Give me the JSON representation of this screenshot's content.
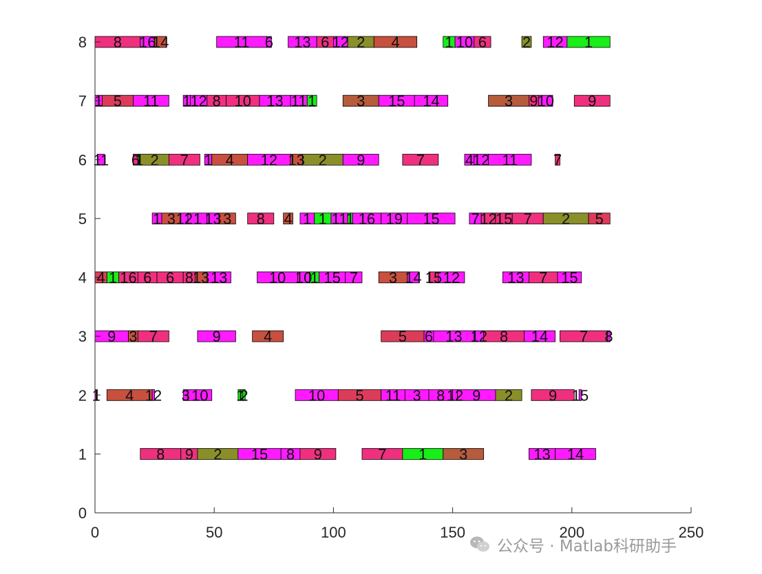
{
  "watermark": {
    "text": "公众号 · Matlab科研助手",
    "icon": "wechat-icon"
  },
  "chart_data": {
    "type": "gantt",
    "xlim": [
      0,
      250
    ],
    "ylim": [
      0,
      8
    ],
    "xticks": [
      0,
      50,
      100,
      150,
      200,
      250
    ],
    "yticks": [
      0,
      1,
      2,
      3,
      4,
      5,
      6,
      7,
      8
    ],
    "colors": {
      "magenta": "#ff1aff",
      "pink": "#f0307f",
      "red": "#dc3c5a",
      "rust": "#c8503f",
      "brown": "#b75b3d",
      "olive": "#8a8f2a",
      "green": "#18ee18"
    },
    "bars": [
      {
        "y": 1,
        "start": 19,
        "end": 36,
        "color": "pink",
        "label": "8"
      },
      {
        "y": 1,
        "start": 36,
        "end": 43,
        "color": "pink",
        "label": "9"
      },
      {
        "y": 1,
        "start": 43,
        "end": 60,
        "color": "olive",
        "label": "2"
      },
      {
        "y": 1,
        "start": 60,
        "end": 78,
        "color": "magenta",
        "label": "15"
      },
      {
        "y": 1,
        "start": 78,
        "end": 86,
        "color": "magenta",
        "label": "8"
      },
      {
        "y": 1,
        "start": 86,
        "end": 101,
        "color": "pink",
        "label": "9"
      },
      {
        "y": 1,
        "start": 112,
        "end": 129,
        "color": "pink",
        "label": "7"
      },
      {
        "y": 1,
        "start": 129,
        "end": 146,
        "color": "green",
        "label": "1"
      },
      {
        "y": 1,
        "start": 146,
        "end": 163,
        "color": "brown",
        "label": "3"
      },
      {
        "y": 1,
        "start": 182,
        "end": 193,
        "color": "magenta",
        "label": "13"
      },
      {
        "y": 1,
        "start": 193,
        "end": 210,
        "color": "magenta",
        "label": "14"
      },
      {
        "y": 2,
        "start": 0,
        "end": 1,
        "color": "magenta",
        "label": "1"
      },
      {
        "y": 2,
        "start": 5,
        "end": 24,
        "color": "rust",
        "label": "4"
      },
      {
        "y": 2,
        "start": 24,
        "end": 25,
        "color": "magenta",
        "label": "12"
      },
      {
        "y": 2,
        "start": 37,
        "end": 39,
        "color": "magenta",
        "label": "3"
      },
      {
        "y": 2,
        "start": 39,
        "end": 49,
        "color": "magenta",
        "label": "10"
      },
      {
        "y": 2,
        "start": 60,
        "end": 62,
        "color": "green",
        "label": "1"
      },
      {
        "y": 2,
        "start": 62,
        "end": 63,
        "color": "green",
        "label": "2"
      },
      {
        "y": 2,
        "start": 84,
        "end": 102,
        "color": "magenta",
        "label": "10"
      },
      {
        "y": 2,
        "start": 102,
        "end": 120,
        "color": "red",
        "label": "5"
      },
      {
        "y": 2,
        "start": 120,
        "end": 130,
        "color": "magenta",
        "label": "11"
      },
      {
        "y": 2,
        "start": 130,
        "end": 140,
        "color": "magenta",
        "label": "3"
      },
      {
        "y": 2,
        "start": 140,
        "end": 150,
        "color": "magenta",
        "label": "8"
      },
      {
        "y": 2,
        "start": 150,
        "end": 152,
        "color": "magenta",
        "label": "12"
      },
      {
        "y": 2,
        "start": 152,
        "end": 168,
        "color": "magenta",
        "label": "9"
      },
      {
        "y": 2,
        "start": 168,
        "end": 179,
        "color": "olive",
        "label": "2"
      },
      {
        "y": 2,
        "start": 183,
        "end": 201,
        "color": "pink",
        "label": "9"
      },
      {
        "y": 2,
        "start": 203,
        "end": 204,
        "color": "magenta",
        "label": "15"
      },
      {
        "y": 3,
        "start": 0,
        "end": 14,
        "color": "magenta",
        "label": "9"
      },
      {
        "y": 3,
        "start": 14,
        "end": 18,
        "color": "rust",
        "label": "3"
      },
      {
        "y": 3,
        "start": 18,
        "end": 31,
        "color": "pink",
        "label": "7"
      },
      {
        "y": 3,
        "start": 43,
        "end": 59,
        "color": "magenta",
        "label": "9"
      },
      {
        "y": 3,
        "start": 66,
        "end": 79,
        "color": "rust",
        "label": "4"
      },
      {
        "y": 3,
        "start": 120,
        "end": 138,
        "color": "red",
        "label": "5"
      },
      {
        "y": 3,
        "start": 138,
        "end": 142,
        "color": "magenta",
        "label": "6"
      },
      {
        "y": 3,
        "start": 142,
        "end": 159,
        "color": "magenta",
        "label": "13"
      },
      {
        "y": 3,
        "start": 159,
        "end": 163,
        "color": "magenta",
        "label": "12"
      },
      {
        "y": 3,
        "start": 163,
        "end": 180,
        "color": "pink",
        "label": "8"
      },
      {
        "y": 3,
        "start": 180,
        "end": 193,
        "color": "magenta",
        "label": "14"
      },
      {
        "y": 3,
        "start": 195,
        "end": 215,
        "color": "pink",
        "label": "7"
      },
      {
        "y": 3,
        "start": 215,
        "end": 216,
        "color": "magenta",
        "label": "8"
      },
      {
        "y": 4,
        "start": 0,
        "end": 5,
        "color": "red",
        "label": "4"
      },
      {
        "y": 4,
        "start": 5,
        "end": 10,
        "color": "green",
        "label": "1"
      },
      {
        "y": 4,
        "start": 10,
        "end": 18,
        "color": "pink",
        "label": "16"
      },
      {
        "y": 4,
        "start": 18,
        "end": 26,
        "color": "pink",
        "label": "6"
      },
      {
        "y": 4,
        "start": 26,
        "end": 37,
        "color": "pink",
        "label": "6"
      },
      {
        "y": 4,
        "start": 37,
        "end": 42,
        "color": "pink",
        "label": "8"
      },
      {
        "y": 4,
        "start": 42,
        "end": 47,
        "color": "rust",
        "label": "13"
      },
      {
        "y": 4,
        "start": 47,
        "end": 57,
        "color": "magenta",
        "label": "13"
      },
      {
        "y": 4,
        "start": 68,
        "end": 85,
        "color": "magenta",
        "label": "10"
      },
      {
        "y": 4,
        "start": 85,
        "end": 90,
        "color": "magenta",
        "label": "10"
      },
      {
        "y": 4,
        "start": 90,
        "end": 94,
        "color": "green",
        "label": "1"
      },
      {
        "y": 4,
        "start": 94,
        "end": 105,
        "color": "magenta",
        "label": "15"
      },
      {
        "y": 4,
        "start": 105,
        "end": 112,
        "color": "magenta",
        "label": "7"
      },
      {
        "y": 4,
        "start": 119,
        "end": 131,
        "color": "rust",
        "label": "3"
      },
      {
        "y": 4,
        "start": 131,
        "end": 136,
        "color": "magenta",
        "label": "14"
      },
      {
        "y": 4,
        "start": 140,
        "end": 144,
        "color": "pink",
        "label": "15"
      },
      {
        "y": 4,
        "start": 144,
        "end": 155,
        "color": "magenta",
        "label": "12"
      },
      {
        "y": 4,
        "start": 171,
        "end": 182,
        "color": "magenta",
        "label": "13"
      },
      {
        "y": 4,
        "start": 182,
        "end": 194,
        "color": "pink",
        "label": "7"
      },
      {
        "y": 4,
        "start": 194,
        "end": 204,
        "color": "magenta",
        "label": "15"
      },
      {
        "y": 5,
        "start": 24,
        "end": 28,
        "color": "magenta",
        "label": "1"
      },
      {
        "y": 5,
        "start": 28,
        "end": 36,
        "color": "rust",
        "label": "3"
      },
      {
        "y": 5,
        "start": 36,
        "end": 39,
        "color": "magenta",
        "label": "12"
      },
      {
        "y": 5,
        "start": 39,
        "end": 47,
        "color": "magenta",
        "label": "1"
      },
      {
        "y": 5,
        "start": 47,
        "end": 52,
        "color": "magenta",
        "label": "13"
      },
      {
        "y": 5,
        "start": 52,
        "end": 59,
        "color": "rust",
        "label": "3"
      },
      {
        "y": 5,
        "start": 64,
        "end": 75,
        "color": "pink",
        "label": "8"
      },
      {
        "y": 5,
        "start": 79,
        "end": 83,
        "color": "rust",
        "label": "4"
      },
      {
        "y": 5,
        "start": 86,
        "end": 92,
        "color": "magenta",
        "label": "1"
      },
      {
        "y": 5,
        "start": 92,
        "end": 99,
        "color": "green",
        "label": "1"
      },
      {
        "y": 5,
        "start": 99,
        "end": 106,
        "color": "magenta",
        "label": "11"
      },
      {
        "y": 5,
        "start": 106,
        "end": 108,
        "color": "green",
        "label": "1"
      },
      {
        "y": 5,
        "start": 108,
        "end": 120,
        "color": "magenta",
        "label": "16"
      },
      {
        "y": 5,
        "start": 120,
        "end": 131,
        "color": "magenta",
        "label": "19"
      },
      {
        "y": 5,
        "start": 131,
        "end": 151,
        "color": "magenta",
        "label": "15"
      },
      {
        "y": 5,
        "start": 157,
        "end": 162,
        "color": "magenta",
        "label": "7"
      },
      {
        "y": 5,
        "start": 162,
        "end": 168,
        "color": "pink",
        "label": "12"
      },
      {
        "y": 5,
        "start": 168,
        "end": 175,
        "color": "pink",
        "label": "15"
      },
      {
        "y": 5,
        "start": 175,
        "end": 188,
        "color": "pink",
        "label": "7"
      },
      {
        "y": 5,
        "start": 188,
        "end": 207,
        "color": "olive",
        "label": "2"
      },
      {
        "y": 5,
        "start": 207,
        "end": 216,
        "color": "red",
        "label": "5"
      },
      {
        "y": 6,
        "start": 1,
        "end": 4,
        "color": "magenta",
        "label": "11"
      },
      {
        "y": 6,
        "start": 16,
        "end": 18,
        "color": "pink",
        "label": "6"
      },
      {
        "y": 6,
        "start": 18,
        "end": 19,
        "color": "green",
        "label": "1"
      },
      {
        "y": 6,
        "start": 19,
        "end": 31,
        "color": "olive",
        "label": "2"
      },
      {
        "y": 6,
        "start": 31,
        "end": 44,
        "color": "pink",
        "label": "7"
      },
      {
        "y": 6,
        "start": 46,
        "end": 49,
        "color": "magenta",
        "label": "1"
      },
      {
        "y": 6,
        "start": 49,
        "end": 64,
        "color": "rust",
        "label": "4"
      },
      {
        "y": 6,
        "start": 64,
        "end": 82,
        "color": "magenta",
        "label": "12"
      },
      {
        "y": 6,
        "start": 82,
        "end": 87,
        "color": "rust",
        "label": "13"
      },
      {
        "y": 6,
        "start": 87,
        "end": 104,
        "color": "olive",
        "label": "2"
      },
      {
        "y": 6,
        "start": 104,
        "end": 119,
        "color": "magenta",
        "label": "9"
      },
      {
        "y": 6,
        "start": 129,
        "end": 144,
        "color": "pink",
        "label": "7"
      },
      {
        "y": 6,
        "start": 155,
        "end": 159,
        "color": "magenta",
        "label": "4"
      },
      {
        "y": 6,
        "start": 159,
        "end": 165,
        "color": "magenta",
        "label": "12"
      },
      {
        "y": 6,
        "start": 165,
        "end": 183,
        "color": "magenta",
        "label": "11"
      },
      {
        "y": 6,
        "start": 193,
        "end": 195,
        "color": "pink",
        "label": "7"
      },
      {
        "y": 7,
        "start": 0,
        "end": 3,
        "color": "magenta",
        "label": "1"
      },
      {
        "y": 7,
        "start": 3,
        "end": 16,
        "color": "red",
        "label": "5"
      },
      {
        "y": 7,
        "start": 16,
        "end": 31,
        "color": "magenta",
        "label": "11"
      },
      {
        "y": 7,
        "start": 37,
        "end": 40,
        "color": "magenta",
        "label": "1"
      },
      {
        "y": 7,
        "start": 40,
        "end": 47,
        "color": "magenta",
        "label": "12"
      },
      {
        "y": 7,
        "start": 47,
        "end": 55,
        "color": "pink",
        "label": "8"
      },
      {
        "y": 7,
        "start": 55,
        "end": 69,
        "color": "pink",
        "label": "10"
      },
      {
        "y": 7,
        "start": 69,
        "end": 82,
        "color": "magenta",
        "label": "13"
      },
      {
        "y": 7,
        "start": 82,
        "end": 89,
        "color": "magenta",
        "label": "11"
      },
      {
        "y": 7,
        "start": 89,
        "end": 93,
        "color": "green",
        "label": "1"
      },
      {
        "y": 7,
        "start": 104,
        "end": 119,
        "color": "brown",
        "label": "3"
      },
      {
        "y": 7,
        "start": 119,
        "end": 134,
        "color": "magenta",
        "label": "15"
      },
      {
        "y": 7,
        "start": 134,
        "end": 148,
        "color": "magenta",
        "label": "14"
      },
      {
        "y": 7,
        "start": 165,
        "end": 182,
        "color": "brown",
        "label": "3"
      },
      {
        "y": 7,
        "start": 182,
        "end": 186,
        "color": "pink",
        "label": "9"
      },
      {
        "y": 7,
        "start": 186,
        "end": 192,
        "color": "magenta",
        "label": "10"
      },
      {
        "y": 7,
        "start": 201,
        "end": 216,
        "color": "pink",
        "label": "9"
      },
      {
        "y": 8,
        "start": 0,
        "end": 19,
        "color": "pink",
        "label": "8"
      },
      {
        "y": 8,
        "start": 19,
        "end": 25,
        "color": "magenta",
        "label": "16"
      },
      {
        "y": 8,
        "start": 25,
        "end": 30,
        "color": "rust",
        "label": "14"
      },
      {
        "y": 8,
        "start": 51,
        "end": 72,
        "color": "magenta",
        "label": "11"
      },
      {
        "y": 8,
        "start": 72,
        "end": 74,
        "color": "magenta",
        "label": "6"
      },
      {
        "y": 8,
        "start": 81,
        "end": 93,
        "color": "magenta",
        "label": "13"
      },
      {
        "y": 8,
        "start": 93,
        "end": 100,
        "color": "pink",
        "label": "6"
      },
      {
        "y": 8,
        "start": 100,
        "end": 106,
        "color": "magenta",
        "label": "12"
      },
      {
        "y": 8,
        "start": 106,
        "end": 117,
        "color": "olive",
        "label": "2"
      },
      {
        "y": 8,
        "start": 117,
        "end": 135,
        "color": "rust",
        "label": "4"
      },
      {
        "y": 8,
        "start": 146,
        "end": 151,
        "color": "green",
        "label": "1"
      },
      {
        "y": 8,
        "start": 151,
        "end": 159,
        "color": "magenta",
        "label": "10"
      },
      {
        "y": 8,
        "start": 159,
        "end": 166,
        "color": "pink",
        "label": "6"
      },
      {
        "y": 8,
        "start": 179,
        "end": 183,
        "color": "olive",
        "label": "2"
      },
      {
        "y": 8,
        "start": 188,
        "end": 198,
        "color": "magenta",
        "label": "12"
      },
      {
        "y": 8,
        "start": 198,
        "end": 216,
        "color": "green",
        "label": "1"
      }
    ]
  }
}
